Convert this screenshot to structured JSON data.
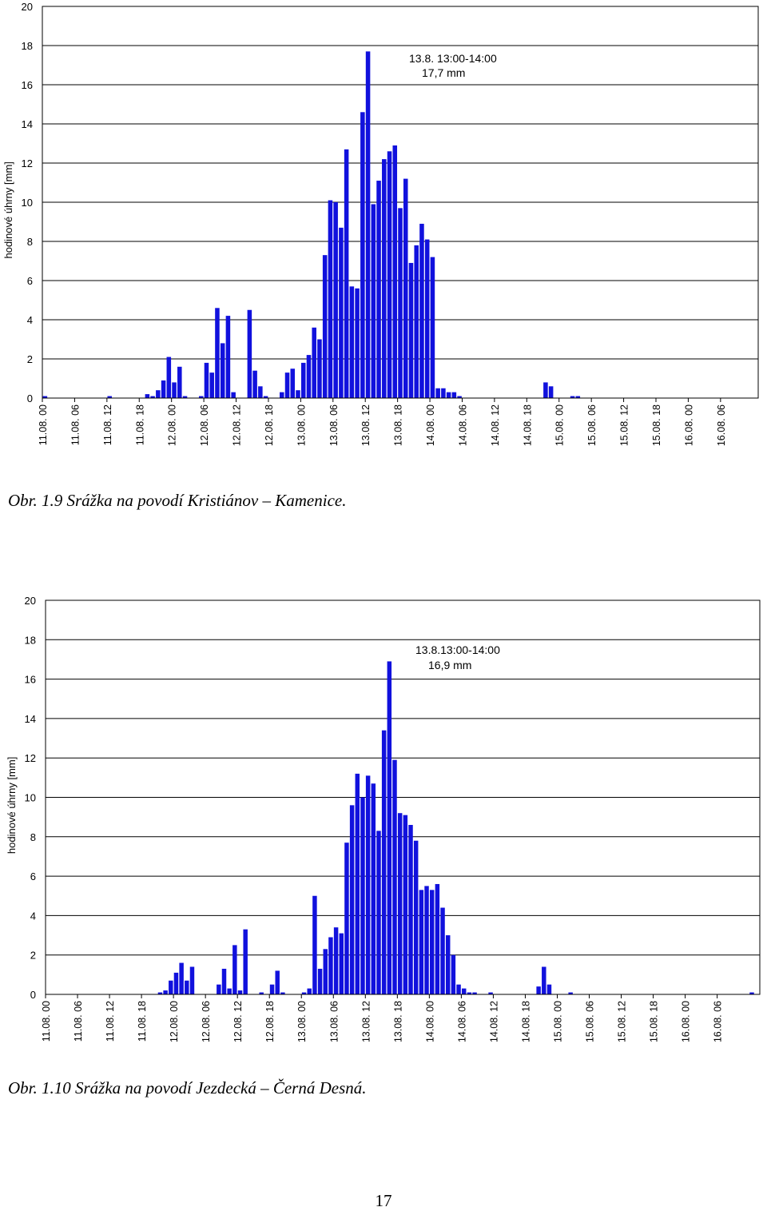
{
  "chart_data": [
    {
      "type": "bar",
      "ylabel": "hodinové úhrny [mm]",
      "ylim": [
        0,
        20
      ],
      "yticks": [
        "0",
        "2",
        "4",
        "6",
        "8",
        "10",
        "12",
        "14",
        "16",
        "18",
        "20"
      ],
      "xtick_labels": [
        "11.08. 00",
        "11.08. 06",
        "11.08. 12",
        "11.08. 18",
        "12.08. 00",
        "12.08. 06",
        "12.08. 12",
        "12.08. 18",
        "13.08. 00",
        "13.08. 06",
        "13.08. 12",
        "13.08. 18",
        "14.08. 00",
        "14.08. 06",
        "14.08. 12",
        "14.08. 18",
        "15.08. 00",
        "15.08. 06",
        "15.08. 12",
        "15.08. 18",
        "16.08. 00",
        "16.08. 06"
      ],
      "hours_per_tick": 6,
      "color": "#1111dd",
      "grid": true,
      "annotation": [
        "13.8. 13:00-14:00",
        "17,7 mm"
      ],
      "values": [
        0.1,
        0,
        0,
        0,
        0,
        0,
        0,
        0,
        0,
        0,
        0,
        0,
        0.1,
        0,
        0,
        0,
        0,
        0,
        0,
        0.2,
        0.1,
        0.4,
        0.9,
        2.1,
        0.8,
        1.6,
        0.1,
        0,
        0,
        0.1,
        1.8,
        1.3,
        4.6,
        2.8,
        4.2,
        0.3,
        0,
        0,
        4.5,
        1.4,
        0.6,
        0.1,
        0,
        0,
        0.3,
        1.3,
        1.5,
        0.4,
        1.8,
        2.2,
        3.6,
        3.0,
        7.3,
        10.1,
        10.0,
        8.7,
        12.7,
        5.7,
        5.6,
        14.6,
        17.7,
        9.9,
        11.1,
        12.2,
        12.6,
        12.9,
        9.7,
        11.2,
        6.9,
        7.8,
        8.9,
        8.1,
        7.2,
        0.5,
        0.5,
        0.3,
        0.3,
        0.1,
        0,
        0,
        0,
        0,
        0,
        0,
        0,
        0,
        0,
        0,
        0,
        0,
        0,
        0,
        0,
        0.8,
        0.6,
        0,
        0,
        0,
        0.1,
        0.1,
        0,
        0,
        0,
        0,
        0,
        0,
        0,
        0,
        0,
        0,
        0,
        0,
        0,
        0,
        0,
        0,
        0,
        0,
        0,
        0,
        0,
        0,
        0,
        0,
        0,
        0,
        0,
        0,
        0,
        0,
        0,
        0,
        0
      ]
    },
    {
      "type": "bar",
      "ylabel": "hodinové úhrny [mm]",
      "ylim": [
        0,
        20
      ],
      "yticks": [
        "0",
        "2",
        "4",
        "6",
        "8",
        "10",
        "12",
        "14",
        "16",
        "18",
        "20"
      ],
      "xtick_labels": [
        "11.08. 00",
        "11.08. 06",
        "11.08. 12",
        "11.08. 18",
        "12.08. 00",
        "12.08. 06",
        "12.08. 12",
        "12.08. 18",
        "13.08. 00",
        "13.08. 06",
        "13.08. 12",
        "13.08. 18",
        "14.08. 00",
        "14.08. 06",
        "14.08. 12",
        "14.08. 18",
        "15.08. 00",
        "15.08. 06",
        "15.08. 12",
        "15.08. 18",
        "16.08. 00",
        "16.08. 06"
      ],
      "hours_per_tick": 6,
      "color": "#1111dd",
      "grid": true,
      "annotation": [
        "13.8.13:00-14:00",
        "16,9 mm"
      ],
      "values": [
        0,
        0,
        0,
        0,
        0,
        0,
        0,
        0,
        0,
        0,
        0,
        0,
        0,
        0,
        0,
        0,
        0,
        0,
        0,
        0,
        0,
        0.1,
        0.2,
        0.7,
        1.1,
        1.6,
        0.7,
        1.4,
        0,
        0,
        0,
        0,
        0.5,
        1.3,
        0.3,
        2.5,
        0.2,
        3.3,
        0,
        0,
        0.1,
        0,
        0.5,
        1.2,
        0.1,
        0,
        0,
        0,
        0.1,
        0.3,
        5.0,
        1.3,
        2.3,
        2.9,
        3.4,
        3.1,
        7.7,
        9.6,
        11.2,
        10.0,
        11.1,
        10.7,
        8.3,
        13.4,
        16.9,
        11.9,
        9.2,
        9.1,
        8.6,
        7.8,
        5.3,
        5.5,
        5.3,
        5.6,
        4.4,
        3.0,
        2.0,
        0.5,
        0.3,
        0.1,
        0.1,
        0,
        0,
        0.1,
        0,
        0,
        0,
        0,
        0,
        0,
        0,
        0,
        0.4,
        1.4,
        0.5,
        0,
        0,
        0,
        0.1,
        0,
        0,
        0,
        0,
        0,
        0,
        0,
        0,
        0,
        0,
        0,
        0,
        0,
        0,
        0,
        0,
        0,
        0,
        0,
        0,
        0,
        0,
        0,
        0,
        0,
        0,
        0,
        0,
        0,
        0,
        0,
        0,
        0,
        0.1,
        0
      ]
    }
  ],
  "captions": {
    "fig1": "Obr. 1.9 Srážka na povodí Kristiánov – Kamenice.",
    "fig2": "Obr. 1.10 Srážka na povodí Jezdecká – Černá Desná."
  },
  "page_number": "17"
}
